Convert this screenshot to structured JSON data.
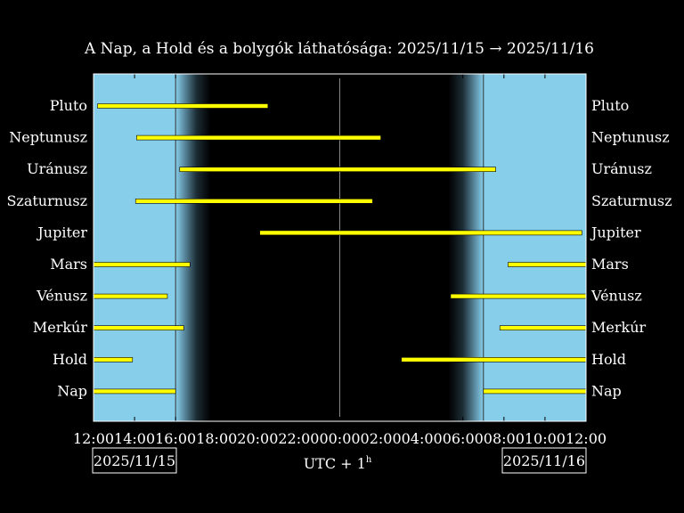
{
  "chart_data": {
    "type": "gantt",
    "title": "A Nap, a Hold és a bolygók láthatósága: 2025/11/15 → 2025/11/16",
    "xlabel": "UTC + 1",
    "xlabel_sup": "h",
    "x_range_hours": [
      12,
      36
    ],
    "x_ticks": [
      "12:00",
      "14:00",
      "16:00",
      "18:00",
      "20:00",
      "22:00",
      "00:00",
      "02:00",
      "04:00",
      "06:00",
      "08:00",
      "10:00",
      "12:00"
    ],
    "start_date_label": "2025/11/15",
    "end_date_label": "2025/11/16",
    "sunset": 16.0,
    "twilight_end": 17.7,
    "twilight_start": 29.3,
    "sunrise": 31.0,
    "colors": {
      "day": "#87CEEB",
      "night": "#000000",
      "bar": "#FFFF00",
      "bar_outline": "#000000",
      "text": "#FFFFFF"
    },
    "series": [
      {
        "name": "Pluto",
        "intervals": [
          [
            12.2,
            20.5
          ]
        ]
      },
      {
        "name": "Neptunusz",
        "intervals": [
          [
            14.1,
            26.0
          ]
        ]
      },
      {
        "name": "Uránusz",
        "intervals": [
          [
            16.2,
            31.6
          ]
        ]
      },
      {
        "name": "Szaturnusz",
        "intervals": [
          [
            14.05,
            25.6
          ]
        ]
      },
      {
        "name": "Jupiter",
        "intervals": [
          [
            20.1,
            35.8
          ]
        ]
      },
      {
        "name": "Mars",
        "intervals": [
          [
            12.0,
            16.7
          ],
          [
            32.2,
            36.0
          ]
        ]
      },
      {
        "name": "Vénusz",
        "intervals": [
          [
            12.0,
            15.6
          ],
          [
            29.4,
            36.0
          ]
        ]
      },
      {
        "name": "Merkúr",
        "intervals": [
          [
            12.0,
            16.4
          ],
          [
            31.8,
            36.0
          ]
        ]
      },
      {
        "name": "Hold",
        "intervals": [
          [
            12.0,
            13.9
          ],
          [
            27.0,
            36.0
          ]
        ]
      },
      {
        "name": "Nap",
        "intervals": [
          [
            12.0,
            16.0
          ],
          [
            31.0,
            36.0
          ]
        ]
      }
    ]
  }
}
